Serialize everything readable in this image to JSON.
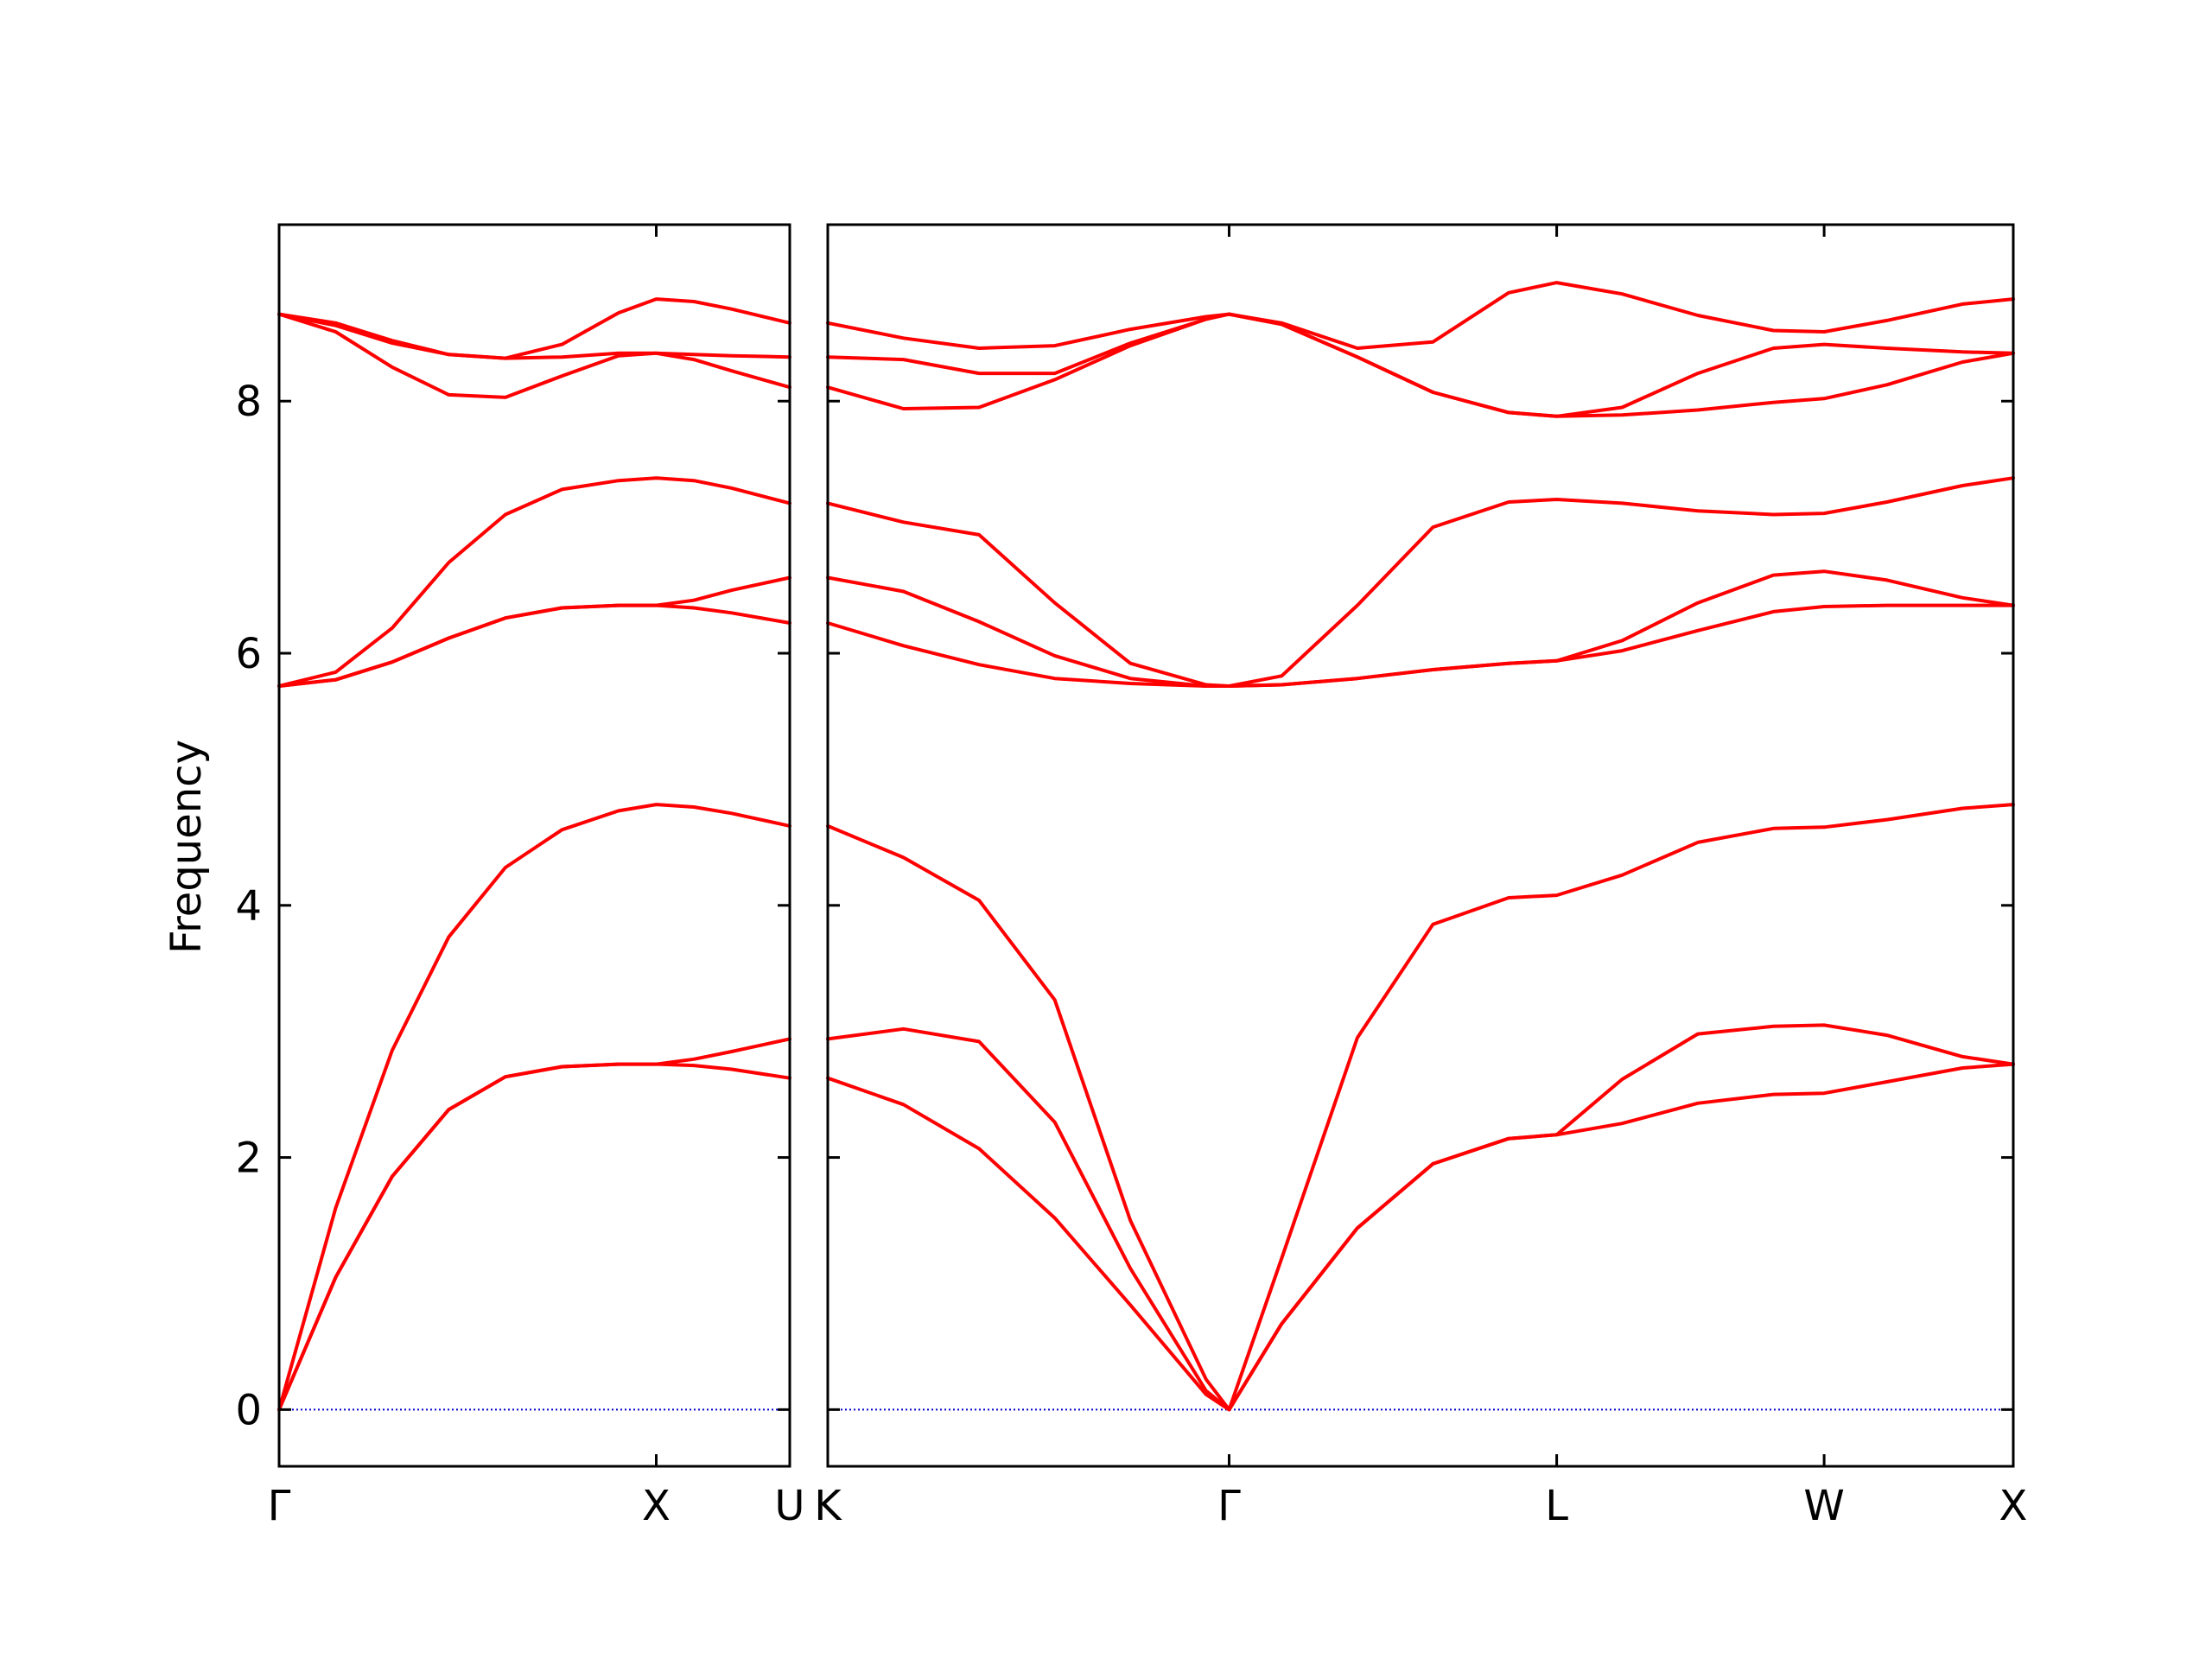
{
  "chart_data": {
    "type": "line",
    "ylabel": "Frequency",
    "ylim": [
      -0.45,
      9.4
    ],
    "yticks": [
      0,
      2,
      4,
      6,
      8
    ],
    "colors": {
      "bands": "#ff0000",
      "zero_line": "#0000cc",
      "axes": "#000000"
    },
    "grid": false,
    "panels": [
      {
        "name": "panel-gamma-x-u",
        "xticks": [
          {
            "x": 0.0,
            "label": "Γ"
          },
          {
            "x": 1.0,
            "label": "X"
          },
          {
            "x": 1.354,
            "label": "U"
          }
        ],
        "xlim": [
          0.0,
          1.354
        ],
        "series": [
          {
            "x": [
              0.0,
              0.15,
              0.3,
              0.45,
              0.6,
              0.75,
              0.9,
              1.0,
              1.1,
              1.2,
              1.354
            ],
            "y": [
              0.0,
              1.05,
              1.85,
              2.38,
              2.64,
              2.72,
              2.74,
              2.74,
              2.73,
              2.7,
              2.63
            ]
          },
          {
            "x": [
              0.0,
              0.15,
              0.3,
              0.45,
              0.6,
              0.75,
              0.9,
              1.0,
              1.1,
              1.2,
              1.354
            ],
            "y": [
              0.0,
              1.05,
              1.85,
              2.38,
              2.64,
              2.72,
              2.74,
              2.74,
              2.78,
              2.84,
              2.94
            ]
          },
          {
            "x": [
              0.0,
              0.15,
              0.3,
              0.45,
              0.6,
              0.75,
              0.9,
              1.0,
              1.1,
              1.2,
              1.354
            ],
            "y": [
              0.0,
              1.6,
              2.85,
              3.75,
              4.3,
              4.6,
              4.75,
              4.8,
              4.78,
              4.73,
              4.63
            ]
          },
          {
            "x": [
              0.0,
              0.15,
              0.3,
              0.45,
              0.6,
              0.75,
              0.9,
              1.0,
              1.1,
              1.2,
              1.354
            ],
            "y": [
              5.74,
              5.79,
              5.93,
              6.12,
              6.28,
              6.36,
              6.38,
              6.38,
              6.36,
              6.32,
              6.24
            ]
          },
          {
            "x": [
              0.0,
              0.15,
              0.3,
              0.45,
              0.6,
              0.75,
              0.9,
              1.0,
              1.1,
              1.2,
              1.354
            ],
            "y": [
              5.74,
              5.85,
              6.2,
              6.72,
              7.1,
              7.3,
              7.37,
              7.39,
              7.37,
              7.31,
              7.19
            ]
          },
          {
            "x": [
              0.0,
              0.15,
              0.3,
              0.45,
              0.6,
              0.75,
              0.9,
              1.0,
              1.1,
              1.2,
              1.354
            ],
            "y": [
              5.74,
              5.79,
              5.93,
              6.12,
              6.28,
              6.36,
              6.38,
              6.38,
              6.42,
              6.5,
              6.6
            ]
          },
          {
            "x": [
              0.0,
              0.15,
              0.3,
              0.45,
              0.6,
              0.75,
              0.9,
              1.0,
              1.1,
              1.2,
              1.354
            ],
            "y": [
              8.69,
              8.55,
              8.27,
              8.05,
              8.03,
              8.2,
              8.36,
              8.38,
              8.33,
              8.24,
              8.11
            ]
          },
          {
            "x": [
              0.0,
              0.15,
              0.3,
              0.45,
              0.6,
              0.75,
              0.9,
              1.0,
              1.1,
              1.2,
              1.354
            ],
            "y": [
              8.69,
              8.6,
              8.46,
              8.37,
              8.34,
              8.35,
              8.38,
              8.38,
              8.37,
              8.36,
              8.35
            ]
          },
          {
            "x": [
              0.0,
              0.15,
              0.3,
              0.45,
              0.6,
              0.75,
              0.9,
              1.0,
              1.1,
              1.2,
              1.354
            ],
            "y": [
              8.69,
              8.62,
              8.48,
              8.37,
              8.34,
              8.45,
              8.7,
              8.81,
              8.79,
              8.73,
              8.62
            ]
          }
        ]
      },
      {
        "name": "panel-k-gamma-l-w-x",
        "xticks": [
          {
            "x": 0.0,
            "label": "K"
          },
          {
            "x": 1.061,
            "label": "Γ"
          },
          {
            "x": 1.927,
            "label": "L"
          },
          {
            "x": 2.634,
            "label": "W"
          },
          {
            "x": 3.134,
            "label": "X"
          }
        ],
        "xlim": [
          0.0,
          3.134
        ],
        "series": [
          {
            "x": [
              0.0,
              0.2,
              0.4,
              0.6,
              0.8,
              1.0,
              1.061,
              1.2,
              1.4,
              1.6,
              1.8,
              1.927,
              2.1,
              2.3,
              2.5,
              2.634,
              2.8,
              3.0,
              3.134
            ],
            "y": [
              2.63,
              2.42,
              2.07,
              1.52,
              0.83,
              0.12,
              0.0,
              0.68,
              1.44,
              1.95,
              2.15,
              2.18,
              2.27,
              2.43,
              2.5,
              2.51,
              2.6,
              2.71,
              2.74
            ]
          },
          {
            "x": [
              0.0,
              0.2,
              0.4,
              0.6,
              0.8,
              1.0,
              1.061,
              1.2,
              1.4,
              1.6,
              1.8,
              1.927,
              2.1,
              2.3,
              2.5,
              2.634,
              2.8,
              3.0,
              3.134
            ],
            "y": [
              2.94,
              3.02,
              2.92,
              2.28,
              1.12,
              0.15,
              0.0,
              0.68,
              1.44,
              1.95,
              2.15,
              2.18,
              2.62,
              2.98,
              3.04,
              3.05,
              2.97,
              2.8,
              2.74
            ]
          },
          {
            "x": [
              0.0,
              0.2,
              0.4,
              0.6,
              0.8,
              1.0,
              1.061,
              1.2,
              1.4,
              1.6,
              1.8,
              1.927,
              2.1,
              2.3,
              2.5,
              2.634,
              2.8,
              3.0,
              3.134
            ],
            "y": [
              4.63,
              4.38,
              4.04,
              3.25,
              1.5,
              0.24,
              0.0,
              1.2,
              2.95,
              3.85,
              4.06,
              4.08,
              4.24,
              4.5,
              4.61,
              4.62,
              4.68,
              4.77,
              4.8
            ]
          },
          {
            "x": [
              0.0,
              0.2,
              0.4,
              0.6,
              0.8,
              1.0,
              1.061,
              1.2,
              1.4,
              1.6,
              1.8,
              1.927,
              2.1,
              2.3,
              2.5,
              2.634,
              2.8,
              3.0,
              3.134
            ],
            "y": [
              6.24,
              6.06,
              5.91,
              5.8,
              5.76,
              5.74,
              5.74,
              5.75,
              5.8,
              5.87,
              5.92,
              5.94,
              6.02,
              6.18,
              6.33,
              6.37,
              6.38,
              6.38,
              6.38
            ]
          },
          {
            "x": [
              0.0,
              0.2,
              0.4,
              0.6,
              0.8,
              1.0,
              1.061,
              1.2,
              1.4,
              1.6,
              1.8,
              1.927,
              2.1,
              2.3,
              2.5,
              2.634,
              2.8,
              3.0,
              3.134
            ],
            "y": [
              6.6,
              6.49,
              6.25,
              5.98,
              5.8,
              5.74,
              5.74,
              5.75,
              5.8,
              5.87,
              5.92,
              5.94,
              6.1,
              6.4,
              6.62,
              6.65,
              6.58,
              6.44,
              6.38
            ]
          },
          {
            "x": [
              0.0,
              0.2,
              0.4,
              0.6,
              0.8,
              1.0,
              1.061,
              1.2,
              1.4,
              1.6,
              1.8,
              1.927,
              2.1,
              2.3,
              2.5,
              2.634,
              2.8,
              3.0,
              3.134
            ],
            "y": [
              7.19,
              7.04,
              6.94,
              6.4,
              5.92,
              5.75,
              5.74,
              5.82,
              6.38,
              7.0,
              7.2,
              7.22,
              7.19,
              7.13,
              7.1,
              7.11,
              7.2,
              7.33,
              7.39
            ]
          },
          {
            "x": [
              0.0,
              0.2,
              0.4,
              0.6,
              0.8,
              1.0,
              1.061,
              1.2,
              1.4,
              1.6,
              1.8,
              1.927,
              2.1,
              2.3,
              2.5,
              2.634,
              2.8,
              3.0,
              3.134
            ],
            "y": [
              8.11,
              7.94,
              7.95,
              8.17,
              8.44,
              8.65,
              8.69,
              8.61,
              8.35,
              8.07,
              7.91,
              7.88,
              7.89,
              7.93,
              7.99,
              8.02,
              8.13,
              8.31,
              8.38
            ]
          },
          {
            "x": [
              0.0,
              0.2,
              0.4,
              0.6,
              0.8,
              1.0,
              1.061,
              1.2,
              1.4,
              1.6,
              1.8,
              1.927,
              2.1,
              2.3,
              2.5,
              2.634,
              2.8,
              3.0,
              3.134
            ],
            "y": [
              8.35,
              8.33,
              8.22,
              8.22,
              8.46,
              8.65,
              8.69,
              8.61,
              8.35,
              8.07,
              7.91,
              7.88,
              7.95,
              8.22,
              8.42,
              8.45,
              8.42,
              8.39,
              8.38
            ]
          },
          {
            "x": [
              0.0,
              0.2,
              0.4,
              0.6,
              0.8,
              1.0,
              1.061,
              1.2,
              1.4,
              1.6,
              1.8,
              1.927,
              2.1,
              2.3,
              2.5,
              2.634,
              2.8,
              3.0,
              3.134
            ],
            "y": [
              8.62,
              8.5,
              8.42,
              8.44,
              8.57,
              8.67,
              8.69,
              8.62,
              8.42,
              8.47,
              8.86,
              8.94,
              8.85,
              8.68,
              8.56,
              8.55,
              8.64,
              8.77,
              8.81
            ]
          }
        ]
      }
    ]
  }
}
